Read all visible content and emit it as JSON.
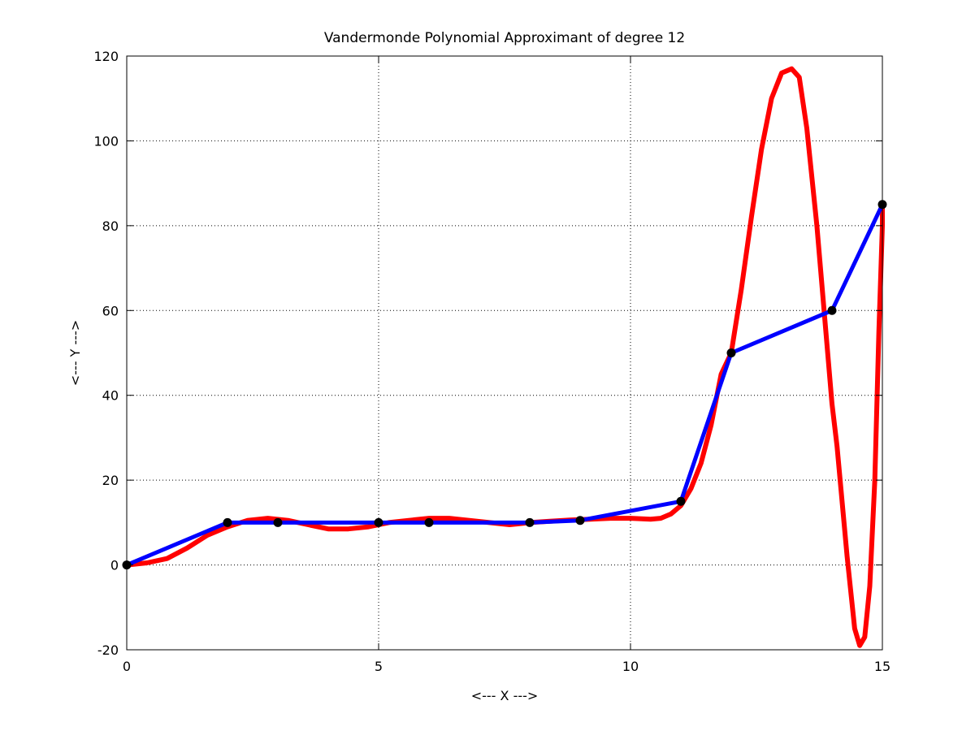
{
  "chart_data": {
    "type": "line",
    "title": "Vandermonde Polynomial Approximant of degree 12",
    "xlabel": "<--- X --->",
    "ylabel": "<--- Y --->",
    "xlim": [
      0,
      15
    ],
    "ylim": [
      -20,
      120
    ],
    "xticks": [
      "0",
      "5",
      "10",
      "15"
    ],
    "yticks": [
      "-20",
      "0",
      "20",
      "40",
      "60",
      "80",
      "100",
      "120"
    ],
    "grid": true,
    "legend": "none",
    "colors": {
      "polynomial": "#ff0000",
      "data": "#0000ff",
      "points": "#000000"
    },
    "series": [
      {
        "role": "polynomial",
        "x": [
          0,
          0.4,
          0.8,
          1.2,
          1.6,
          2,
          2.4,
          2.8,
          3.2,
          3.6,
          4,
          4.4,
          4.8,
          5.2,
          5.6,
          6,
          6.4,
          6.8,
          7.2,
          7.6,
          8,
          8.4,
          8.8,
          9.2,
          9.6,
          10,
          10.4,
          10.6,
          10.8,
          11,
          11.2,
          11.4,
          11.6,
          11.8,
          12,
          12.2,
          12.4,
          12.6,
          12.8,
          13,
          13.2,
          13.35,
          13.5,
          13.7,
          13.9,
          14,
          14.1,
          14.3,
          14.45,
          14.55,
          14.65,
          14.75,
          14.85,
          14.93,
          15,
          15
        ],
        "y": [
          0,
          0.5,
          1.5,
          4,
          7,
          9,
          10.5,
          11,
          10.5,
          9.5,
          8.5,
          8.5,
          9,
          10,
          10.5,
          11,
          11,
          10.5,
          10,
          9.5,
          10,
          10.3,
          10.6,
          10.8,
          11,
          11,
          10.8,
          11,
          12,
          14,
          18,
          24,
          33,
          45,
          50,
          65,
          82,
          98,
          110,
          116,
          117,
          115,
          103,
          80,
          52,
          38,
          28,
          2,
          -15,
          -19,
          -17,
          -5,
          20,
          55,
          80,
          85
        ]
      },
      {
        "role": "data",
        "x": [
          0,
          2,
          3,
          5,
          6,
          8,
          9,
          11,
          12,
          14,
          15
        ],
        "y": [
          0,
          10,
          10,
          10,
          10,
          10,
          10.5,
          15,
          50,
          60,
          85
        ]
      }
    ]
  }
}
